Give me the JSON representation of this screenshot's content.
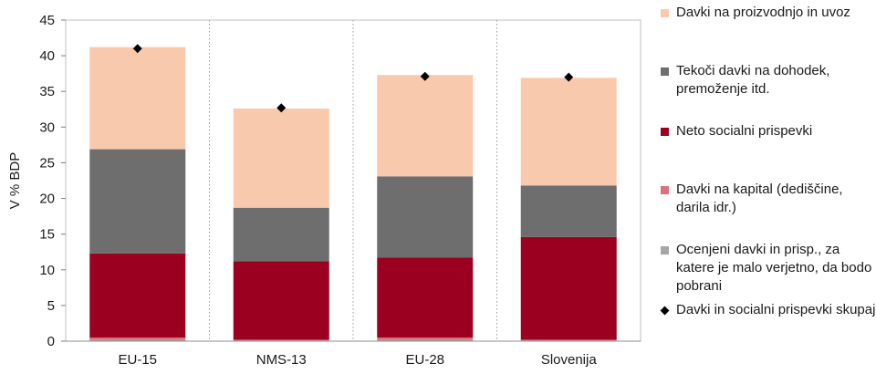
{
  "chart_data": {
    "type": "bar",
    "stacked": true,
    "ylabel": "V % BDP",
    "ylim": [
      0,
      45
    ],
    "yticks": [
      0,
      5,
      10,
      15,
      20,
      25,
      30,
      35,
      40,
      45
    ],
    "grid": false,
    "legend_position": "right",
    "categories": [
      "EU-15",
      "NMS-13",
      "EU-28",
      "Slovenija"
    ],
    "series": [
      {
        "name": "Ocenjeni davki in prisp., za katere je malo verjetno, da bodo pobrani",
        "color": "#a6a6a6",
        "values": [
          0.2,
          0.1,
          0.2,
          0.1
        ]
      },
      {
        "name": "Davki na kapital (dediščine, darila idr.)",
        "color": "#d9727a",
        "values": [
          0.3,
          0.1,
          0.3,
          0.1
        ]
      },
      {
        "name": "Neto socialni prispevki",
        "color": "#9c0020",
        "values": [
          11.8,
          11.0,
          11.2,
          14.4
        ]
      },
      {
        "name": "Tekoči davki na dohodek, premoženje itd.",
        "color": "#6e6e6e",
        "values": [
          14.6,
          7.5,
          11.4,
          7.2
        ]
      },
      {
        "name": "Davki na proizvodnjo in uvoz",
        "color": "#f8c9ad",
        "values": [
          14.3,
          13.9,
          14.2,
          15.1
        ]
      }
    ],
    "markers": {
      "name": "Davki in socialni prispevki skupaj",
      "color": "#000000",
      "values": [
        41.0,
        32.7,
        37.1,
        37.0
      ]
    }
  }
}
